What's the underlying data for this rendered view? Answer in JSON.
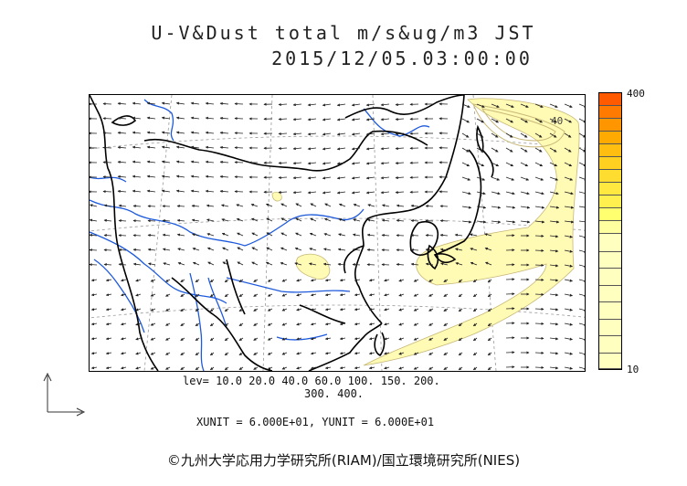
{
  "title": {
    "line1": "U-V&Dust total m/s&ug/m3 JST",
    "line2": "2015/12/05.03:00:00"
  },
  "colorbar": {
    "max_label": "400",
    "min_label": "10",
    "colors": [
      "#ff5a00",
      "#ff7a00",
      "#ff9600",
      "#ffaa00",
      "#ffbe10",
      "#ffd020",
      "#ffdc30",
      "#ffe840",
      "#fff050",
      "#ffff70",
      "#ffffa0",
      "#ffffc0"
    ]
  },
  "levels": {
    "line1": "lev= 10.0 20.0 40.0 60.0 100. 150. 200.",
    "line2": "300. 400."
  },
  "units": "XUNIT = 6.000E+01, YUNIT = 6.000E+01",
  "copyright": "©九州大学応用力学研究所(RIAM)/国立環境研究所(NIES)",
  "map": {
    "contour_label": "40",
    "coast_color": "#000000",
    "river_color": "#1e5adc",
    "dust_fill": "#fffab4",
    "dust_edge": "#c8b878",
    "grid_color": "#888888"
  }
}
